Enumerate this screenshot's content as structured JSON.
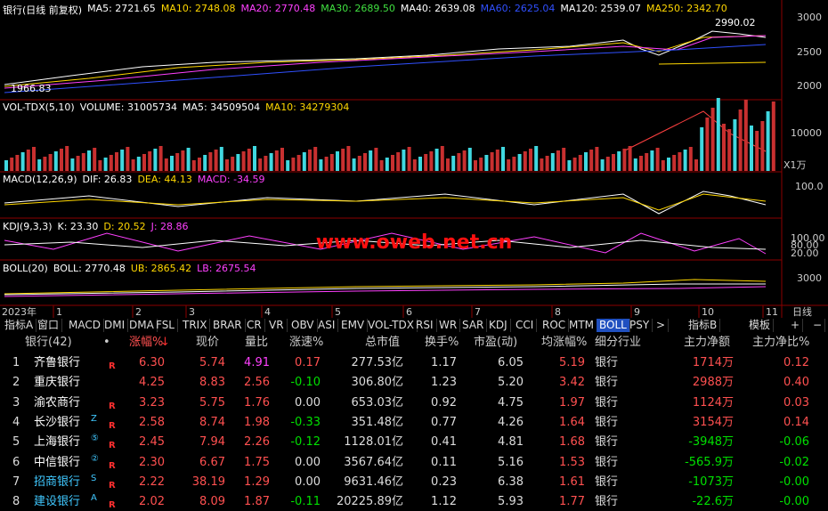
{
  "main_header": {
    "title": "银行(日线 前复权)",
    "items": [
      {
        "text": "MA5: 2721.65",
        "color": "#ffffff"
      },
      {
        "text": "MA10: 2748.08",
        "color": "#ffd700"
      },
      {
        "text": "MA20: 2770.48",
        "color": "#ff40ff"
      },
      {
        "text": "MA30: 2689.50",
        "color": "#40e040"
      },
      {
        "text": "MA40: 2639.08",
        "color": "#ffffff"
      },
      {
        "text": "MA60: 2625.04",
        "color": "#3050ff"
      },
      {
        "text": "MA120: 2539.07",
        "color": "#ffffff"
      },
      {
        "text": "MA250: 2342.70",
        "color": "#ffd700"
      }
    ],
    "high": "2990.02",
    "low": "1966.83",
    "axis": [
      "3000",
      "2500",
      "2000"
    ]
  },
  "volume": {
    "items": [
      {
        "text": "VOL-TDX(5,10)",
        "color": "#ffffff"
      },
      {
        "text": "VOLUME: 31005734",
        "color": "#ffffff"
      },
      {
        "text": "MA5: 34509504",
        "color": "#ffffff"
      },
      {
        "text": "MA10: 34279304",
        "color": "#ffd700"
      }
    ],
    "axis": [
      "10000",
      "X1万"
    ]
  },
  "macd": {
    "items": [
      {
        "text": "MACD(12,26,9)",
        "color": "#ffffff"
      },
      {
        "text": "DIF: 26.83",
        "color": "#ffffff"
      },
      {
        "text": "DEA: 44.13",
        "color": "#ffd700"
      },
      {
        "text": "MACD: -34.59",
        "color": "#ff40ff"
      }
    ],
    "axis": [
      "100.0"
    ]
  },
  "kdj": {
    "items": [
      {
        "text": "KDJ(9,3,3)",
        "color": "#ffffff"
      },
      {
        "text": "K: 23.30",
        "color": "#ffffff"
      },
      {
        "text": "D: 20.52",
        "color": "#ffd700"
      },
      {
        "text": "J: 28.86",
        "color": "#ff40ff"
      }
    ],
    "axis": [
      "100.00",
      "80.00",
      "20.00"
    ]
  },
  "boll": {
    "items": [
      {
        "text": "BOLL(20)",
        "color": "#ffffff"
      },
      {
        "text": "BOLL: 2770.48",
        "color": "#ffffff"
      },
      {
        "text": "UB: 2865.42",
        "color": "#ffd700"
      },
      {
        "text": "LB: 2675.54",
        "color": "#ff40ff"
      }
    ],
    "axis": [
      "3000"
    ]
  },
  "watermark": "www.oweb.net.cn",
  "time_axis": {
    "year": "2023年",
    "months": [
      "1",
      "2",
      "3",
      "4",
      "5",
      "6",
      "7",
      "8",
      "9",
      "10",
      "11"
    ],
    "period": "日线"
  },
  "tabs": {
    "left": [
      "指标A",
      "窗口",
      "MACD",
      "DMI",
      "DMA",
      "FSL",
      "TRIX",
      "BRAR",
      "CR",
      "VR",
      "OBV",
      "ASI",
      "EMV",
      "VOL-TDX",
      "RSI",
      "WR",
      "SAR",
      "KDJ",
      "CCI",
      "ROC",
      "MTM",
      "BOLL",
      "PSY",
      ">"
    ],
    "right": [
      "指标B",
      "模板",
      "+",
      "−"
    ],
    "active": "BOLL"
  },
  "table": {
    "header": [
      "银行(42)",
      "•",
      "涨幅%",
      "现价",
      "量比",
      "涨速%",
      "总市值",
      "换手%",
      "市盈(动)",
      "均涨幅%",
      "细分行业",
      "主力净额",
      "主力净比%"
    ],
    "sort_arrow": "↓",
    "rows": [
      [
        "1",
        "齐鲁银行",
        "",
        "R",
        "6.30",
        "5.74",
        "4.91",
        "0.17",
        "277.53亿",
        "1.17",
        "6.05",
        "5.19",
        "银行",
        "1714万",
        "0.12"
      ],
      [
        "2",
        "重庆银行",
        "",
        "",
        "4.25",
        "8.83",
        "2.56",
        "-0.10",
        "306.80亿",
        "1.23",
        "5.20",
        "3.42",
        "银行",
        "2988万",
        "0.40"
      ],
      [
        "3",
        "渝农商行",
        "",
        "R",
        "3.23",
        "5.75",
        "1.76",
        "0.00",
        "653.03亿",
        "0.92",
        "4.75",
        "1.97",
        "银行",
        "1124万",
        "0.03"
      ],
      [
        "4",
        "长沙银行",
        "Z",
        "R",
        "2.58",
        "8.74",
        "1.98",
        "-0.33",
        "351.48亿",
        "0.77",
        "4.26",
        "1.64",
        "银行",
        "3154万",
        "0.14"
      ],
      [
        "5",
        "上海银行",
        "⑤",
        "R",
        "2.45",
        "7.94",
        "2.26",
        "-0.12",
        "1128.01亿",
        "0.41",
        "4.81",
        "1.68",
        "银行",
        "-3948万",
        "-0.06"
      ],
      [
        "6",
        "中信银行",
        "②",
        "R",
        "2.30",
        "6.67",
        "1.75",
        "0.00",
        "3567.64亿",
        "0.11",
        "5.16",
        "1.53",
        "银行",
        "-565.9万",
        "-0.02"
      ],
      [
        "7",
        "招商银行",
        "S",
        "R",
        "2.22",
        "38.19",
        "1.29",
        "0.00",
        "9631.46亿",
        "0.23",
        "6.38",
        "1.61",
        "银行",
        "-1073万",
        "-0.00"
      ],
      [
        "8",
        "建设银行",
        "A",
        "R",
        "2.02",
        "8.09",
        "1.87",
        "-0.11",
        "20225.89亿",
        "1.12",
        "5.93",
        "1.77",
        "银行",
        "-22.6万",
        "-0.00"
      ]
    ],
    "name_color": [
      "#ffffff",
      "#ffffff",
      "#ffffff",
      "#ffffff",
      "#ffffff",
      "#ffffff",
      "#40c8ff",
      "#40c8ff"
    ]
  }
}
